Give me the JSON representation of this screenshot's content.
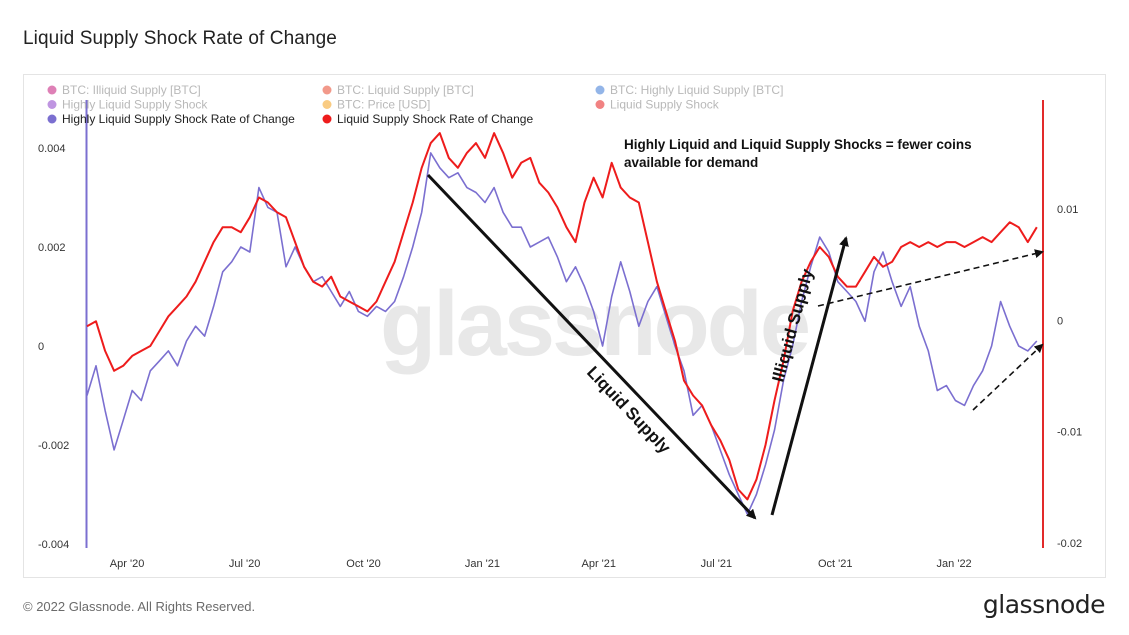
{
  "title": "Liquid Supply Shock Rate of Change",
  "footer": {
    "copyright": "© 2022 Glassnode. All Rights Reserved.",
    "brand": "glassnode"
  },
  "watermark": "glassnode",
  "colors": {
    "blue_series": "#7b6fd0",
    "red_series": "#ee1c1c",
    "right_axis": "#e22a2a",
    "left_axis": "#7b6fd0"
  },
  "chart_data": {
    "type": "line",
    "title": "Liquid Supply Shock Rate of Change",
    "legend": {
      "placement": "top-left",
      "items": [
        {
          "name": "BTC: Illiquid Supply [BTC]",
          "color": "#c2187a",
          "active": false
        },
        {
          "name": "BTC: Liquid Supply [BTC]",
          "color": "#e8452a",
          "active": false
        },
        {
          "name": "BTC: Highly Liquid Supply [BTC]",
          "color": "#3a78d6",
          "active": false
        },
        {
          "name": "Highly Liquid Supply Shock",
          "color": "#8a3ec9",
          "active": false
        },
        {
          "name": "BTC: Price [USD]",
          "color": "#f4a11b",
          "active": false
        },
        {
          "name": "Liquid Supply Shock",
          "color": "#e51c1c",
          "active": false
        },
        {
          "name": "Highly Liquid Supply Shock Rate of Change",
          "color": "#7b6fd0",
          "active": true
        },
        {
          "name": "Liquid Supply Shock Rate of Change",
          "color": "#ee1c1c",
          "active": true
        }
      ]
    },
    "x_axis": {
      "ticks": [
        "Apr '20",
        "Jul '20",
        "Oct '20",
        "Jan '21",
        "Apr '21",
        "Jul '21",
        "Oct '21",
        "Jan '22"
      ],
      "range": [
        "2020-03-01",
        "2022-03-10"
      ]
    },
    "y_left": {
      "ticks": [
        "0.004",
        "0.002",
        "0",
        "-0.002",
        "-0.004"
      ],
      "range": [
        -0.004,
        0.004
      ]
    },
    "y_right": {
      "ticks": [
        "0.01",
        "0",
        "-0.01",
        "-0.02"
      ],
      "range": [
        -0.02,
        0.0105
      ]
    },
    "grid": false,
    "series": [
      {
        "name": "Highly Liquid Supply Shock Rate of Change",
        "axis": "left",
        "points": [
          [
            "2020-03-01",
            -0.001
          ],
          [
            "2020-03-08",
            -0.0004
          ],
          [
            "2020-03-15",
            -0.0013
          ],
          [
            "2020-03-22",
            -0.0021
          ],
          [
            "2020-03-29",
            -0.0015
          ],
          [
            "2020-04-05",
            -0.0009
          ],
          [
            "2020-04-12",
            -0.0011
          ],
          [
            "2020-04-19",
            -0.0005
          ],
          [
            "2020-04-26",
            -0.0003
          ],
          [
            "2020-05-03",
            -0.0001
          ],
          [
            "2020-05-10",
            -0.0004
          ],
          [
            "2020-05-17",
            0.0001
          ],
          [
            "2020-05-24",
            0.0004
          ],
          [
            "2020-05-31",
            0.0002
          ],
          [
            "2020-06-07",
            0.0008
          ],
          [
            "2020-06-14",
            0.0015
          ],
          [
            "2020-06-21",
            0.0017
          ],
          [
            "2020-06-28",
            0.002
          ],
          [
            "2020-07-05",
            0.0019
          ],
          [
            "2020-07-12",
            0.0032
          ],
          [
            "2020-07-19",
            0.0028
          ],
          [
            "2020-07-26",
            0.0027
          ],
          [
            "2020-08-02",
            0.0016
          ],
          [
            "2020-08-09",
            0.002
          ],
          [
            "2020-08-16",
            0.0016
          ],
          [
            "2020-08-23",
            0.0013
          ],
          [
            "2020-08-30",
            0.0014
          ],
          [
            "2020-09-06",
            0.0011
          ],
          [
            "2020-09-13",
            0.0008
          ],
          [
            "2020-09-20",
            0.0011
          ],
          [
            "2020-09-27",
            0.0007
          ],
          [
            "2020-10-04",
            0.0006
          ],
          [
            "2020-10-11",
            0.0008
          ],
          [
            "2020-10-18",
            0.0007
          ],
          [
            "2020-10-25",
            0.0009
          ],
          [
            "2020-11-01",
            0.0014
          ],
          [
            "2020-11-08",
            0.002
          ],
          [
            "2020-11-15",
            0.0027
          ],
          [
            "2020-11-22",
            0.0039
          ],
          [
            "2020-11-29",
            0.0036
          ],
          [
            "2020-12-06",
            0.0034
          ],
          [
            "2020-12-13",
            0.0035
          ],
          [
            "2020-12-20",
            0.0032
          ],
          [
            "2020-12-27",
            0.0031
          ],
          [
            "2021-01-03",
            0.0029
          ],
          [
            "2021-01-10",
            0.0032
          ],
          [
            "2021-01-17",
            0.0027
          ],
          [
            "2021-01-24",
            0.0024
          ],
          [
            "2021-01-31",
            0.0024
          ],
          [
            "2021-02-07",
            0.002
          ],
          [
            "2021-02-14",
            0.0021
          ],
          [
            "2021-02-21",
            0.0022
          ],
          [
            "2021-02-28",
            0.0018
          ],
          [
            "2021-03-07",
            0.0013
          ],
          [
            "2021-03-14",
            0.0016
          ],
          [
            "2021-03-21",
            0.0012
          ],
          [
            "2021-03-28",
            0.0007
          ],
          [
            "2021-04-04",
            0.0
          ],
          [
            "2021-04-11",
            0.001
          ],
          [
            "2021-04-18",
            0.0017
          ],
          [
            "2021-04-25",
            0.0011
          ],
          [
            "2021-05-02",
            0.0004
          ],
          [
            "2021-05-09",
            0.0009
          ],
          [
            "2021-05-16",
            0.0012
          ],
          [
            "2021-05-23",
            0.0006
          ],
          [
            "2021-05-30",
            0.0
          ],
          [
            "2021-06-06",
            -0.0005
          ],
          [
            "2021-06-13",
            -0.0014
          ],
          [
            "2021-06-20",
            -0.0012
          ],
          [
            "2021-06-27",
            -0.0016
          ],
          [
            "2021-07-04",
            -0.0021
          ],
          [
            "2021-07-11",
            -0.0026
          ],
          [
            "2021-07-18",
            -0.003
          ],
          [
            "2021-07-25",
            -0.0034
          ],
          [
            "2021-08-01",
            -0.003
          ],
          [
            "2021-08-08",
            -0.0024
          ],
          [
            "2021-08-15",
            -0.0017
          ],
          [
            "2021-08-22",
            -0.0007
          ],
          [
            "2021-08-29",
            0.0
          ],
          [
            "2021-09-05",
            0.0009
          ],
          [
            "2021-09-12",
            0.0016
          ],
          [
            "2021-09-19",
            0.0022
          ],
          [
            "2021-09-26",
            0.0019
          ],
          [
            "2021-10-03",
            0.0013
          ],
          [
            "2021-10-10",
            0.0011
          ],
          [
            "2021-10-17",
            0.0009
          ],
          [
            "2021-10-24",
            0.0005
          ],
          [
            "2021-10-31",
            0.0015
          ],
          [
            "2021-11-07",
            0.0019
          ],
          [
            "2021-11-14",
            0.0013
          ],
          [
            "2021-11-21",
            0.0008
          ],
          [
            "2021-11-28",
            0.0012
          ],
          [
            "2021-12-05",
            0.0004
          ],
          [
            "2021-12-12",
            -0.0001
          ],
          [
            "2021-12-19",
            -0.0009
          ],
          [
            "2021-12-26",
            -0.0008
          ],
          [
            "2022-01-02",
            -0.0011
          ],
          [
            "2022-01-09",
            -0.0012
          ],
          [
            "2022-01-16",
            -0.0008
          ],
          [
            "2022-01-23",
            -0.0005
          ],
          [
            "2022-01-30",
            0.0
          ],
          [
            "2022-02-06",
            0.0009
          ],
          [
            "2022-02-13",
            0.0004
          ],
          [
            "2022-02-20",
            0.0
          ],
          [
            "2022-02-27",
            -0.0001
          ],
          [
            "2022-03-06",
            0.0001
          ]
        ]
      },
      {
        "name": "Liquid Supply Shock Rate of Change",
        "axis": "left",
        "points": [
          [
            "2020-03-01",
            0.0004
          ],
          [
            "2020-03-08",
            0.0005
          ],
          [
            "2020-03-15",
            -0.0001
          ],
          [
            "2020-03-22",
            -0.0005
          ],
          [
            "2020-03-29",
            -0.0004
          ],
          [
            "2020-04-05",
            -0.0002
          ],
          [
            "2020-04-12",
            -0.0001
          ],
          [
            "2020-04-19",
            0.0
          ],
          [
            "2020-04-26",
            0.0003
          ],
          [
            "2020-05-03",
            0.0006
          ],
          [
            "2020-05-10",
            0.0008
          ],
          [
            "2020-05-17",
            0.001
          ],
          [
            "2020-05-24",
            0.0013
          ],
          [
            "2020-05-31",
            0.0017
          ],
          [
            "2020-06-07",
            0.0021
          ],
          [
            "2020-06-14",
            0.0024
          ],
          [
            "2020-06-21",
            0.0024
          ],
          [
            "2020-06-28",
            0.0023
          ],
          [
            "2020-07-05",
            0.0026
          ],
          [
            "2020-07-12",
            0.003
          ],
          [
            "2020-07-19",
            0.0029
          ],
          [
            "2020-07-26",
            0.0027
          ],
          [
            "2020-08-02",
            0.0026
          ],
          [
            "2020-08-09",
            0.0021
          ],
          [
            "2020-08-16",
            0.0016
          ],
          [
            "2020-08-23",
            0.0013
          ],
          [
            "2020-08-30",
            0.0012
          ],
          [
            "2020-09-06",
            0.0014
          ],
          [
            "2020-09-13",
            0.001
          ],
          [
            "2020-09-20",
            0.0009
          ],
          [
            "2020-09-27",
            0.0008
          ],
          [
            "2020-10-04",
            0.0007
          ],
          [
            "2020-10-11",
            0.0009
          ],
          [
            "2020-10-18",
            0.0013
          ],
          [
            "2020-10-25",
            0.0017
          ],
          [
            "2020-11-01",
            0.0023
          ],
          [
            "2020-11-08",
            0.0029
          ],
          [
            "2020-11-15",
            0.0036
          ],
          [
            "2020-11-22",
            0.0041
          ],
          [
            "2020-11-29",
            0.0043
          ],
          [
            "2020-12-06",
            0.0038
          ],
          [
            "2020-12-13",
            0.0036
          ],
          [
            "2020-12-20",
            0.0039
          ],
          [
            "2020-12-27",
            0.0041
          ],
          [
            "2021-01-03",
            0.0038
          ],
          [
            "2021-01-10",
            0.0043
          ],
          [
            "2021-01-17",
            0.0039
          ],
          [
            "2021-01-24",
            0.0034
          ],
          [
            "2021-01-31",
            0.0037
          ],
          [
            "2021-02-07",
            0.0038
          ],
          [
            "2021-02-14",
            0.0033
          ],
          [
            "2021-02-21",
            0.0031
          ],
          [
            "2021-02-28",
            0.0028
          ],
          [
            "2021-03-07",
            0.0024
          ],
          [
            "2021-03-14",
            0.0021
          ],
          [
            "2021-03-21",
            0.0029
          ],
          [
            "2021-03-28",
            0.0034
          ],
          [
            "2021-04-04",
            0.003
          ],
          [
            "2021-04-11",
            0.0037
          ],
          [
            "2021-04-18",
            0.0032
          ],
          [
            "2021-04-25",
            0.003
          ],
          [
            "2021-05-02",
            0.0029
          ],
          [
            "2021-05-09",
            0.0021
          ],
          [
            "2021-05-16",
            0.0013
          ],
          [
            "2021-05-23",
            0.0007
          ],
          [
            "2021-05-30",
            0.0001
          ],
          [
            "2021-06-06",
            -0.0007
          ],
          [
            "2021-06-13",
            -0.001
          ],
          [
            "2021-06-20",
            -0.0012
          ],
          [
            "2021-06-27",
            -0.0016
          ],
          [
            "2021-07-04",
            -0.0019
          ],
          [
            "2021-07-11",
            -0.0023
          ],
          [
            "2021-07-18",
            -0.0029
          ],
          [
            "2021-07-25",
            -0.0031
          ],
          [
            "2021-08-01",
            -0.0027
          ],
          [
            "2021-08-08",
            -0.002
          ],
          [
            "2021-08-15",
            -0.0011
          ],
          [
            "2021-08-22",
            -0.0003
          ],
          [
            "2021-08-29",
            0.0007
          ],
          [
            "2021-09-05",
            0.0013
          ],
          [
            "2021-09-12",
            0.0017
          ],
          [
            "2021-09-19",
            0.002
          ],
          [
            "2021-09-26",
            0.0018
          ],
          [
            "2021-10-03",
            0.0014
          ],
          [
            "2021-10-10",
            0.0012
          ],
          [
            "2021-10-17",
            0.0012
          ],
          [
            "2021-10-24",
            0.0015
          ],
          [
            "2021-10-31",
            0.0018
          ],
          [
            "2021-11-07",
            0.0016
          ],
          [
            "2021-11-14",
            0.0017
          ],
          [
            "2021-11-21",
            0.002
          ],
          [
            "2021-11-28",
            0.0021
          ],
          [
            "2021-12-05",
            0.002
          ],
          [
            "2021-12-12",
            0.0021
          ],
          [
            "2021-12-19",
            0.002
          ],
          [
            "2021-12-26",
            0.0021
          ],
          [
            "2022-01-02",
            0.0021
          ],
          [
            "2022-01-09",
            0.002
          ],
          [
            "2022-01-16",
            0.0021
          ],
          [
            "2022-01-23",
            0.0022
          ],
          [
            "2022-01-30",
            0.0021
          ],
          [
            "2022-02-06",
            0.0023
          ],
          [
            "2022-02-13",
            0.0025
          ],
          [
            "2022-02-20",
            0.0024
          ],
          [
            "2022-02-27",
            0.0021
          ],
          [
            "2022-03-06",
            0.0024
          ]
        ]
      }
    ],
    "annotations": [
      {
        "text": "Highly Liquid and Liquid Supply Shocks = fewer coins\navailable for demand",
        "kind": "note"
      },
      {
        "text": "Liquid Supply",
        "kind": "arrow-label"
      },
      {
        "text": "Illiquid Supply",
        "kind": "arrow-label"
      }
    ]
  }
}
